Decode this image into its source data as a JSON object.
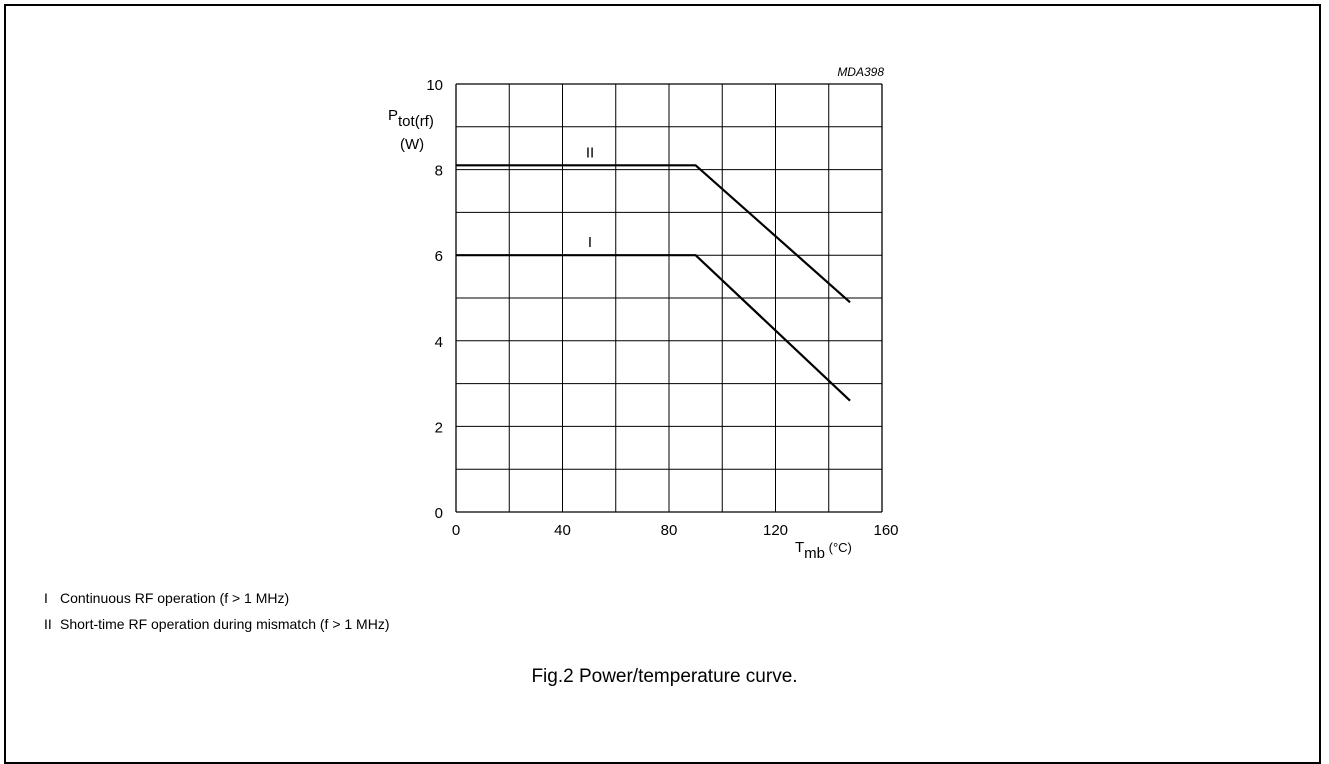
{
  "figure": {
    "code": "MDA398",
    "caption": "Fig.2  Power/temperature curve."
  },
  "legend": [
    {
      "key": "I",
      "text": "Continuous RF operation (f >  1 MHz)"
    },
    {
      "key": "II",
      "text": "Short-time RF operation during mismatch (f >  1 MHz)"
    }
  ],
  "chart_data": {
    "type": "line",
    "title": "",
    "ylabel": {
      "main": "P",
      "sub": "tot(rf)",
      "unit": "(W)"
    },
    "xlabel": {
      "main": "T",
      "sub": "mb",
      "unit": " (°C)"
    },
    "xlim": [
      0,
      160
    ],
    "ylim": [
      0,
      10
    ],
    "x_ticks": [
      0,
      40,
      80,
      120,
      160
    ],
    "y_ticks": [
      0,
      2,
      4,
      6,
      8,
      10
    ],
    "grid": true,
    "series": [
      {
        "name": "I",
        "points": [
          [
            0,
            6.0
          ],
          [
            90,
            6.0
          ],
          [
            148,
            2.6
          ]
        ]
      },
      {
        "name": "II",
        "points": [
          [
            0,
            8.1
          ],
          [
            90,
            8.1
          ],
          [
            148,
            4.9
          ]
        ]
      }
    ]
  }
}
